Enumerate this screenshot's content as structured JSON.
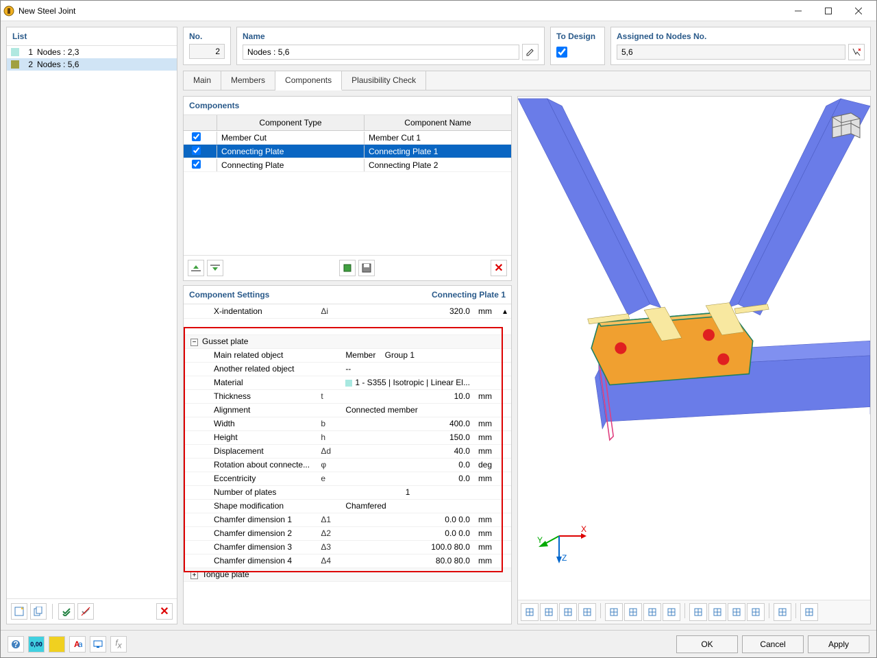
{
  "window": {
    "title": "New Steel Joint"
  },
  "list": {
    "header": "List",
    "items": [
      {
        "idx": "1",
        "label": "Nodes : 2,3",
        "color": "#b0e8e0",
        "selected": false
      },
      {
        "idx": "2",
        "label": "Nodes : 5,6",
        "color": "#a0a040",
        "selected": true
      }
    ]
  },
  "fields": {
    "no_label": "No.",
    "no_value": "2",
    "name_label": "Name",
    "name_value": "Nodes : 5,6",
    "todesign_label": "To Design",
    "todesign_checked": true,
    "assigned_label": "Assigned to Nodes No.",
    "assigned_value": "5,6"
  },
  "tabs": {
    "items": [
      {
        "label": "Main",
        "active": false
      },
      {
        "label": "Members",
        "active": false
      },
      {
        "label": "Components",
        "active": true
      },
      {
        "label": "Plausibility Check",
        "active": false
      }
    ]
  },
  "components": {
    "header": "Components",
    "col_type": "Component Type",
    "col_name": "Component Name",
    "rows": [
      {
        "checked": true,
        "color": "#a8e8e0",
        "type": "Member Cut",
        "name": "Member Cut 1",
        "selected": false
      },
      {
        "checked": true,
        "color": "#d06030",
        "type": "Connecting Plate",
        "name": "Connecting Plate 1",
        "selected": true
      },
      {
        "checked": true,
        "color": "#e07030",
        "type": "Connecting Plate",
        "name": "Connecting Plate 2",
        "selected": false
      }
    ]
  },
  "settings": {
    "header": "Component Settings",
    "title": "Connecting Plate 1",
    "xindent": {
      "label": "X-indentation",
      "sym": "Δi",
      "val": "320.0",
      "unit": "mm"
    },
    "gusset": {
      "section": "Gusset plate",
      "rows": [
        {
          "label": "Main related object",
          "sym": "",
          "val": "Member",
          "val2": "Group 1",
          "unit": ""
        },
        {
          "label": "Another related object",
          "sym": "",
          "val": "--",
          "unit": ""
        },
        {
          "label": "Material",
          "sym": "",
          "val": "1 - S355 | Isotropic | Linear El...",
          "unit": "",
          "swatch": "#a8e8e0"
        },
        {
          "label": "Thickness",
          "sym": "t",
          "val": "10.0",
          "unit": "mm"
        },
        {
          "label": "Alignment",
          "sym": "",
          "val": "Connected member",
          "unit": ""
        },
        {
          "label": "Width",
          "sym": "b",
          "val": "400.0",
          "unit": "mm"
        },
        {
          "label": "Height",
          "sym": "h",
          "val": "150.0",
          "unit": "mm"
        },
        {
          "label": "Displacement",
          "sym": "Δd",
          "val": "40.0",
          "unit": "mm"
        },
        {
          "label": "Rotation about connecte...",
          "sym": "φ",
          "val": "0.0",
          "unit": "deg"
        },
        {
          "label": "Eccentricity",
          "sym": "e",
          "val": "0.0",
          "unit": "mm"
        },
        {
          "label": "Number of plates",
          "sym": "",
          "val": "1",
          "unit": "",
          "center": true
        },
        {
          "label": "Shape modification",
          "sym": "",
          "val": "Chamfered",
          "unit": ""
        },
        {
          "label": "Chamfer dimension 1",
          "sym": "Δ1",
          "val": "0.0 0.0",
          "unit": "mm"
        },
        {
          "label": "Chamfer dimension 2",
          "sym": "Δ2",
          "val": "0.0 0.0",
          "unit": "mm"
        },
        {
          "label": "Chamfer dimension 3",
          "sym": "Δ3",
          "val": "100.0 80.0",
          "unit": "mm"
        },
        {
          "label": "Chamfer dimension 4",
          "sym": "Δ4",
          "val": "80.0 80.0",
          "unit": "mm"
        }
      ]
    },
    "tongue": {
      "section": "Tongue plate"
    }
  },
  "buttons": {
    "ok": "OK",
    "cancel": "Cancel",
    "apply": "Apply"
  },
  "colors": {
    "beam": "#6a7ce8",
    "beam_dark": "#4a5ac0",
    "gusset_fill": "#f0a030",
    "gusset_edge": "#208060",
    "bolt": "#e02020",
    "outline": "#e04080"
  }
}
